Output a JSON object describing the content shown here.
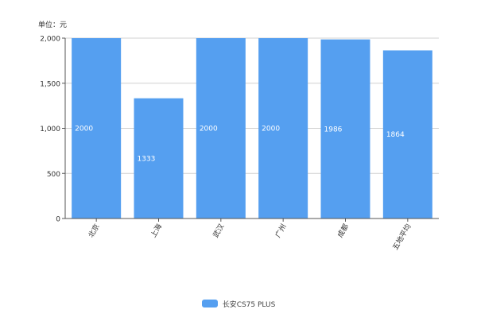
{
  "chart_data": {
    "type": "bar",
    "unit_label": "单位：元",
    "categories": [
      "北京",
      "上海",
      "武汉",
      "广州",
      "成都",
      "五地平均"
    ],
    "series": [
      {
        "name": "长安CS75 PLUS",
        "values": [
          2000,
          1333,
          2000,
          2000,
          1986,
          1864
        ]
      }
    ],
    "data_labels": [
      "2000",
      "1333",
      "2000",
      "2000",
      "1986",
      "1864"
    ],
    "y_ticks": [
      "0",
      "500",
      "1,000",
      "1,500",
      "2,000"
    ],
    "y_tick_values": [
      0,
      500,
      1000,
      1500,
      2000
    ],
    "ylim": [
      0,
      2000
    ],
    "grid": true,
    "legend_position": "bottom",
    "colors": {
      "bar": "#559ff0",
      "grid": "#d0d0d0",
      "axis": "#555555",
      "text": "#333333",
      "label": "#ffffff"
    }
  }
}
